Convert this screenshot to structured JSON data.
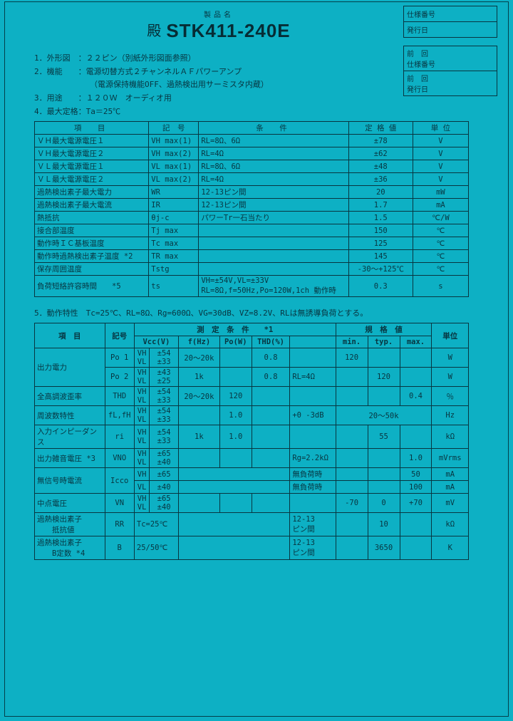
{
  "header": {
    "top_label": "製品名",
    "prefix": "殿",
    "product": "STK411-240E",
    "box1_a": "仕様番号",
    "box1_b": "発行日",
    "box2_a": "前　回\n仕様番号",
    "box2_b": "前　回\n発行日"
  },
  "intro": {
    "l1": "1．外形図　：２２ピン（別紙外形図面参照）",
    "l2": "2．機能　　：電源切替方式２チャンネルＡＦパワーアンプ",
    "l2b": "（電源保持機能OFF、過熱検出用サーミスタ内蔵）",
    "l3": "3．用途　　：１２０Ｗ　オーディオ用",
    "l4": "4．最大定格：Ta＝25℃"
  },
  "table1": {
    "hdr": [
      "項　目",
      "記　号",
      "条　件",
      "定 格 値",
      "単 位"
    ],
    "rows": [
      [
        "ＶＨ最大電源電圧１",
        "VH max(1)",
        "RL=8Ω、6Ω",
        "±78",
        "V"
      ],
      [
        "ＶＨ最大電源電圧２",
        "VH max(2)",
        "RL=4Ω",
        "±62",
        "V"
      ],
      [
        "ＶＬ最大電源電圧１",
        "VL max(1)",
        "RL=8Ω、6Ω",
        "±48",
        "V"
      ],
      [
        "ＶＬ最大電源電圧２",
        "VL max(2)",
        "RL=4Ω",
        "±36",
        "V"
      ],
      [
        "過熱検出素子最大電力",
        "WR",
        "12-13ピン間",
        "20",
        "mW"
      ],
      [
        "過熱検出素子最大電流",
        "IR",
        "12-13ピン間",
        "1.7",
        "mA"
      ],
      [
        "熱抵抗",
        "θj-c",
        "パワーTr一石当たり",
        "1.5",
        "℃/W"
      ],
      [
        "接合部温度",
        "Tj max",
        "",
        "150",
        "℃"
      ],
      [
        "動作時ＩＣ基板温度",
        "Tc max",
        "",
        "125",
        "℃"
      ],
      [
        "動作時過熱検出素子温度 *2",
        "TR max",
        "",
        "145",
        "℃"
      ],
      [
        "保存周囲温度",
        "Tstg",
        "",
        "-30～+125℃",
        "℃"
      ],
      [
        "負荷短絡許容時間　　*5",
        "ts",
        "VH=±54V,VL=±33V\nRL=8Ω,f=50Hz,Po=120W,1ch 動作時",
        "0.3",
        "s"
      ]
    ]
  },
  "sec5_label": "5．動作特性　Tc=25℃、RL=8Ω、Rg=600Ω、VG=30dB、VZ=8.2V、RLは無誘導負荷とする。",
  "table2": {
    "hdr1": [
      "項　目",
      "記号",
      "測　定　条　件　　*1",
      "規　格　値",
      "単位"
    ],
    "hdr2": [
      "Vcc(V)",
      "f(Hz)",
      "Po(W)",
      "THD(%)",
      "",
      "min.",
      "typ.",
      "max."
    ],
    "rows": [
      {
        "item": "出力電力",
        "sym": "Po 1",
        "vh": "VH",
        "vl": "VL",
        "vcc": "±54\n±33",
        "f": "20～20k",
        "po": "",
        "thd": "0.8",
        "cond": "",
        "min": "120",
        "typ": "",
        "max": "",
        "unit": "W"
      },
      {
        "item": "",
        "sym": "Po 2",
        "vh": "VH",
        "vl": "VL",
        "vcc": "±43\n±25",
        "f": "1k",
        "po": "",
        "thd": "0.8",
        "cond": "RL=4Ω",
        "min": "",
        "typ": "120",
        "max": "",
        "unit": "W"
      },
      {
        "item": "全高調波歪率",
        "sym": "THD",
        "vh": "VH",
        "vl": "VL",
        "vcc": "±54\n±33",
        "f": "20～20k",
        "po": "120",
        "thd": "",
        "cond": "",
        "min": "",
        "typ": "",
        "max": "0.4",
        "unit": "％"
      },
      {
        "item": "周波数特性",
        "sym": "fL,fH",
        "vh": "VH",
        "vl": "VL",
        "vcc": "±54\n±33",
        "f": "",
        "po": "1.0",
        "thd": "",
        "cond": "+0 -3dB",
        "min_span": "20～50k",
        "unit": "Hz"
      },
      {
        "item": "入力インピーダンス",
        "sym": "ri",
        "vh": "VH",
        "vl": "VL",
        "vcc": "±54\n±33",
        "f": "1k",
        "po": "1.0",
        "thd": "",
        "cond": "",
        "min": "",
        "typ": "55",
        "max": "",
        "unit": "kΩ"
      },
      {
        "item": "出力雑音電圧 *3",
        "sym": "VNO",
        "vh": "VH",
        "vl": "VL",
        "vcc": "±65\n±40",
        "f": "",
        "po": "",
        "thd": "",
        "cond": "Rg=2.2kΩ",
        "min": "",
        "typ": "",
        "max": "1.0",
        "unit": "mVrms"
      },
      {
        "item": "無信号時電流",
        "sym": "Icco",
        "vh": "VH",
        "vl": "VL",
        "vcc_a": "±65",
        "vcc_b": "±40",
        "cond_a": "無負荷時",
        "cond_b": "無負荷時",
        "max_a": "50",
        "max_b": "100",
        "unit": "mA"
      },
      {
        "item": "中点電圧",
        "sym": "VN",
        "vh": "VH",
        "vl": "VL",
        "vcc": "±65\n±40",
        "f": "",
        "po": "",
        "thd": "",
        "cond": "",
        "min": "-70",
        "typ": "0",
        "max": "+70",
        "unit": "mV"
      },
      {
        "item": "過熱検出素子\n　　抵抗値",
        "sym": "RR",
        "vcc_text": "Tc=25℃",
        "cond": "12-13\nピン間",
        "min": "",
        "typ": "10",
        "max": "",
        "unit": "kΩ"
      },
      {
        "item": "過熱検出素子\n　　B定数 *4",
        "sym": "B",
        "vcc_text": "25/50℃",
        "cond": "12-13\nピン間",
        "min": "",
        "typ": "3650",
        "max": "",
        "unit": "K"
      }
    ]
  }
}
